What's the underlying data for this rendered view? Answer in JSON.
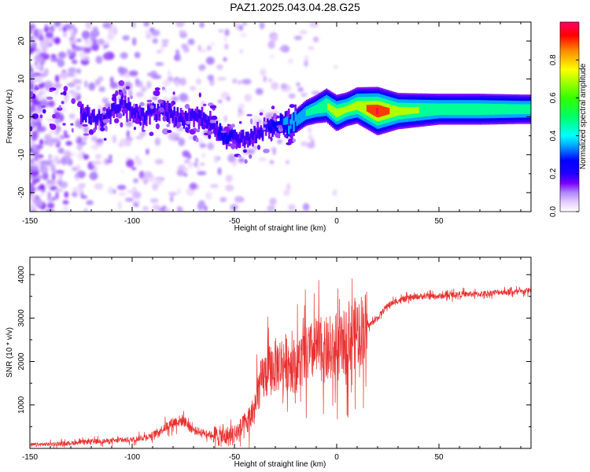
{
  "title": "PAZ1.2025.043.04.28.G25",
  "chart_data": [
    {
      "type": "heatmap",
      "xlabel": "Height of straight line (km)",
      "ylabel": "Frequency (Hz)",
      "xlim": [
        -150,
        95
      ],
      "ylim": [
        -25,
        25
      ],
      "x_ticks": [
        -150,
        -100,
        -50,
        0,
        50
      ],
      "y_ticks": [
        -20,
        -10,
        0,
        10,
        20
      ],
      "colorbar": {
        "label": "Normalized spectral amplitude",
        "range": [
          0.0,
          1.0
        ],
        "ticks": [
          0.0,
          0.2,
          0.4,
          0.6,
          0.8
        ],
        "colors": [
          "#ffffff",
          "#e6ccff",
          "#b088ff",
          "#7a00ff",
          "#2000ff",
          "#0000ff",
          "#00aaff",
          "#00ffff",
          "#00ff66",
          "#33ff00",
          "#ffff00",
          "#ff8800",
          "#ff0000",
          "#ff0066"
        ]
      },
      "ridge": {
        "x": [
          -125,
          -115,
          -105,
          -95,
          -85,
          -75,
          -65,
          -55,
          -45,
          -38,
          -30,
          -22,
          -15,
          -10,
          -5,
          0,
          5,
          10,
          20,
          30,
          50,
          70,
          90
        ],
        "frequency_hz": [
          1,
          -1,
          3,
          0,
          2,
          -1,
          0,
          -5,
          -6,
          -4,
          -2,
          -2,
          1,
          2,
          3,
          1,
          2,
          3,
          1.5,
          1.5,
          2,
          2,
          2
        ],
        "amplitude": [
          0.3,
          0.28,
          0.3,
          0.3,
          0.32,
          0.3,
          0.3,
          0.35,
          0.3,
          0.3,
          0.35,
          0.5,
          0.55,
          0.6,
          0.7,
          0.75,
          0.7,
          0.75,
          0.98,
          0.75,
          0.65,
          0.65,
          0.62
        ]
      }
    },
    {
      "type": "line",
      "xlabel": "Height of straight line (km)",
      "ylabel": "SNR (10 * v/v)",
      "xlim": [
        -150,
        95
      ],
      "ylim": [
        0,
        4400
      ],
      "x_ticks": [
        -150,
        -100,
        -50,
        0,
        50
      ],
      "y_ticks": [
        1000,
        2000,
        3000,
        4000
      ],
      "color": "#e8302f",
      "series": [
        {
          "x": [
            -150,
            -140,
            -130,
            -120,
            -110,
            -100,
            -90,
            -80,
            -75,
            -70,
            -60,
            -55,
            -50,
            -45,
            -40,
            -38,
            -35,
            -30,
            -25,
            -20,
            -15,
            -10,
            -5,
            0,
            5,
            10,
            15,
            20,
            25,
            30,
            40,
            50,
            60,
            70,
            80,
            90,
            95
          ],
          "y": [
            80,
            100,
            120,
            160,
            170,
            200,
            300,
            600,
            650,
            420,
            300,
            260,
            320,
            500,
            900,
            1400,
            1700,
            1900,
            2000,
            1900,
            2100,
            2300,
            2200,
            2200,
            2500,
            2700,
            2800,
            3000,
            3300,
            3400,
            3500,
            3500,
            3550,
            3550,
            3600,
            3600,
            3650
          ]
        }
      ]
    }
  ]
}
